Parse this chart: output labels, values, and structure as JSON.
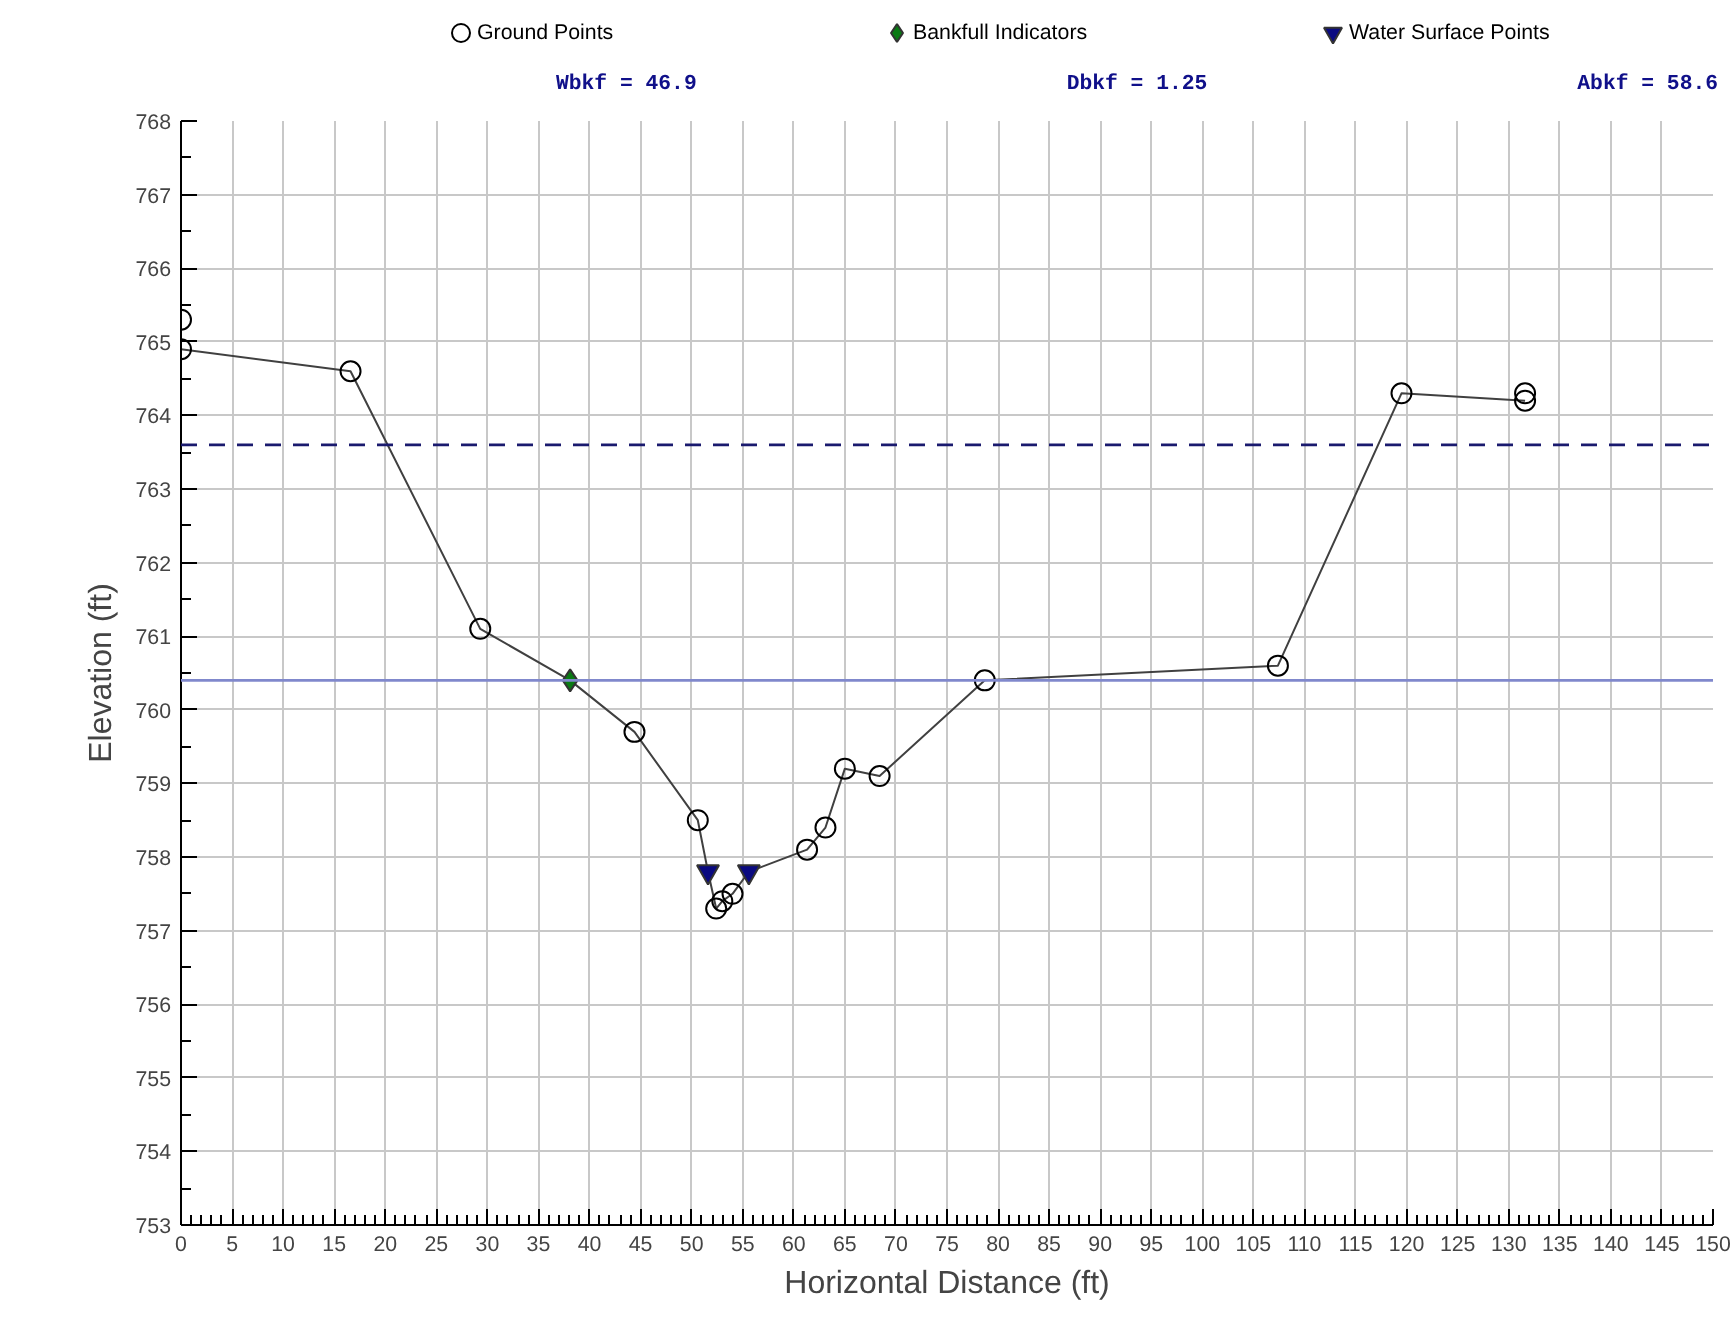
{
  "chart_data": {
    "type": "scatter",
    "xlabel": "Horizontal Distance (ft)",
    "ylabel": "Elevation (ft)",
    "annotations": [
      "Wbkf = 46.9",
      "Dbkf = 1.25",
      "Abkf = 58.6"
    ],
    "xlim": [
      0,
      150
    ],
    "ylim": [
      753,
      768
    ],
    "xticks": [
      0,
      5,
      10,
      15,
      20,
      25,
      30,
      35,
      40,
      45,
      50,
      55,
      60,
      65,
      70,
      75,
      80,
      85,
      90,
      95,
      100,
      105,
      110,
      115,
      120,
      125,
      130,
      135,
      140,
      145,
      150
    ],
    "yticks": [
      753,
      754,
      755,
      756,
      757,
      758,
      759,
      760,
      761,
      762,
      763,
      764,
      765,
      766,
      767,
      768
    ],
    "grid": true,
    "legend": "top",
    "ref_lines": [
      {
        "axis": "y",
        "value": 760.4,
        "color": "#8088cc",
        "line_style": "solid"
      },
      {
        "axis": "y",
        "value": 763.6,
        "color": "#1a1a6e",
        "line_style": "dashed"
      }
    ],
    "series": [
      {
        "type": "line",
        "color": "#404040",
        "marker": "none",
        "line_style": "solid",
        "x": [
          0,
          16.6,
          29.3,
          38.1,
          44.4,
          50.6,
          51.6,
          52.4,
          53.0,
          54.0,
          55.6,
          61.3,
          63.1,
          65.0,
          68.4,
          78.7,
          107.4,
          119.5,
          131.6
        ],
        "values": [
          764.9,
          764.6,
          761.1,
          760.4,
          759.7,
          758.5,
          757.8,
          757.3,
          757.4,
          757.5,
          757.8,
          758.1,
          758.4,
          759.2,
          759.1,
          760.4,
          760.6,
          764.3,
          764.2
        ]
      },
      {
        "name": "Ground Points",
        "color": "#000000",
        "marker": "circle",
        "x": [
          0,
          0,
          16.6,
          29.3,
          44.4,
          50.6,
          52.4,
          53.0,
          54.0,
          61.3,
          63.1,
          65.0,
          68.4,
          78.7,
          107.4,
          119.5,
          131.6,
          131.6
        ],
        "values": [
          765.3,
          764.9,
          764.6,
          761.1,
          759.7,
          758.5,
          757.3,
          757.4,
          757.5,
          758.1,
          758.4,
          759.2,
          759.1,
          760.4,
          760.6,
          764.3,
          764.3,
          764.2
        ]
      },
      {
        "name": "Bankfull Indicators",
        "color": "#0a7a14",
        "marker": "diamond",
        "x": [
          38.1
        ],
        "values": [
          760.4
        ]
      },
      {
        "name": "Water Surface Points",
        "color": "#0a0a80",
        "marker": "triangle",
        "x": [
          51.6,
          55.6
        ],
        "values": [
          757.8,
          757.8
        ]
      }
    ]
  }
}
